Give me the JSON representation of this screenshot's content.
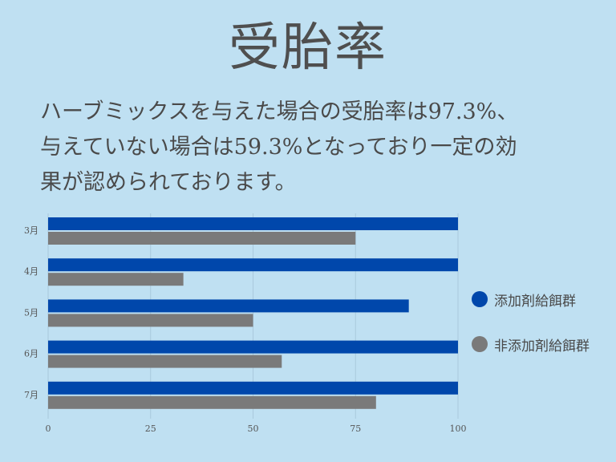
{
  "title": "受胎率",
  "description": {
    "lines": [
      "ハーブミックスを与えた場合の受胎率は97.3%、",
      "与えていない場合は59.3%となっており一定の効",
      "果が認められております。"
    ]
  },
  "colors": {
    "background": "#bfe0f2",
    "series_additive": "#0047ab",
    "series_non_additive": "#7a7a7a"
  },
  "chart_data": {
    "type": "bar",
    "orientation": "horizontal",
    "categories": [
      "3月",
      "4月",
      "5月",
      "6月",
      "7月"
    ],
    "series": [
      {
        "name": "添加剤給餌群",
        "values": [
          100,
          100,
          88,
          100,
          100
        ]
      },
      {
        "name": "非添加剤給餌群",
        "values": [
          75,
          33,
          50,
          57,
          80
        ]
      }
    ],
    "xlim": [
      0,
      100
    ],
    "xticks": [
      "0",
      "25",
      "50",
      "75",
      "100"
    ],
    "xtick_values": [
      0,
      25,
      50,
      75,
      100
    ],
    "grid": true,
    "legend_position": "right"
  }
}
